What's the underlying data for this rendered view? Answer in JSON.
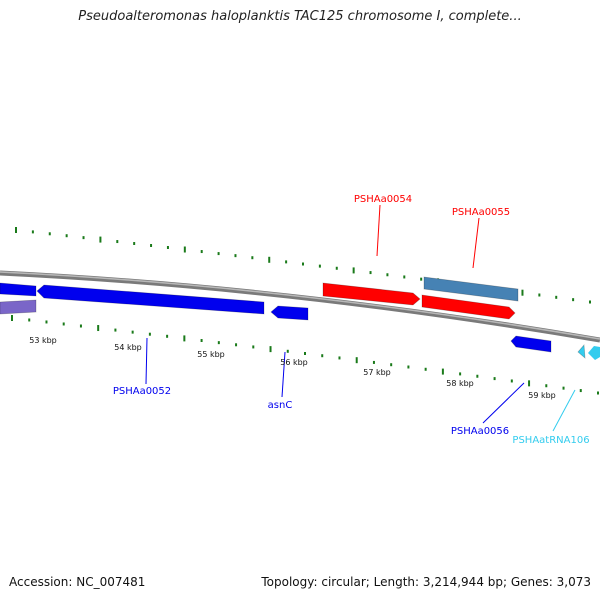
{
  "title": "Pseudoalteromonas haloplanktis TAC125 chromosome I, complete...",
  "footer": {
    "accession": "Accession: NC_007481",
    "summary": "Topology: circular; Length: 3,214,944 bp; Genes: 3,073"
  },
  "colors": {
    "backbone": "#808080",
    "ticks": "#1a7a1a",
    "forward_cds": "#ff0000",
    "reverse_cds": "#0000ee",
    "steel_feature": "#4682b4",
    "purple_feature": "#7a66c8",
    "trna": "#33ccee"
  },
  "scale_labels": [
    "53 kbp",
    "54 kbp",
    "55 kbp",
    "56 kbp",
    "57 kbp",
    "58 kbp",
    "59 kbp"
  ],
  "features": [
    {
      "id": "f-purple",
      "strand": "reverse",
      "color": "purple_feature"
    },
    {
      "id": "f-blue-left",
      "strand": "reverse",
      "color": "reverse_cds"
    },
    {
      "id": "PSHAa0052",
      "strand": "reverse",
      "color": "reverse_cds"
    },
    {
      "id": "asnC",
      "strand": "reverse",
      "color": "reverse_cds"
    },
    {
      "id": "PSHAa0054",
      "strand": "forward",
      "color": "forward_cds"
    },
    {
      "id": "PSHAa0055-steel",
      "strand": "forward",
      "color": "steel_feature"
    },
    {
      "id": "PSHAa0055",
      "strand": "forward",
      "color": "forward_cds"
    },
    {
      "id": "PSHAa0056",
      "strand": "reverse",
      "color": "reverse_cds"
    },
    {
      "id": "PSHAatRNA106",
      "strand": "reverse",
      "color": "trna"
    }
  ],
  "labels": [
    {
      "id": "PSHAa0054",
      "text": "PSHAa0054",
      "color": "forward_cds"
    },
    {
      "id": "PSHAa0055",
      "text": "PSHAa0055",
      "color": "forward_cds"
    },
    {
      "id": "PSHAa0052",
      "text": "PSHAa0052",
      "color": "reverse_cds"
    },
    {
      "id": "asnC",
      "text": "asnC",
      "color": "reverse_cds"
    },
    {
      "id": "PSHAa0056",
      "text": "PSHAa0056",
      "color": "reverse_cds"
    },
    {
      "id": "PSHAatRNA106",
      "text": "PSHAatRNA106",
      "color": "trna"
    }
  ]
}
